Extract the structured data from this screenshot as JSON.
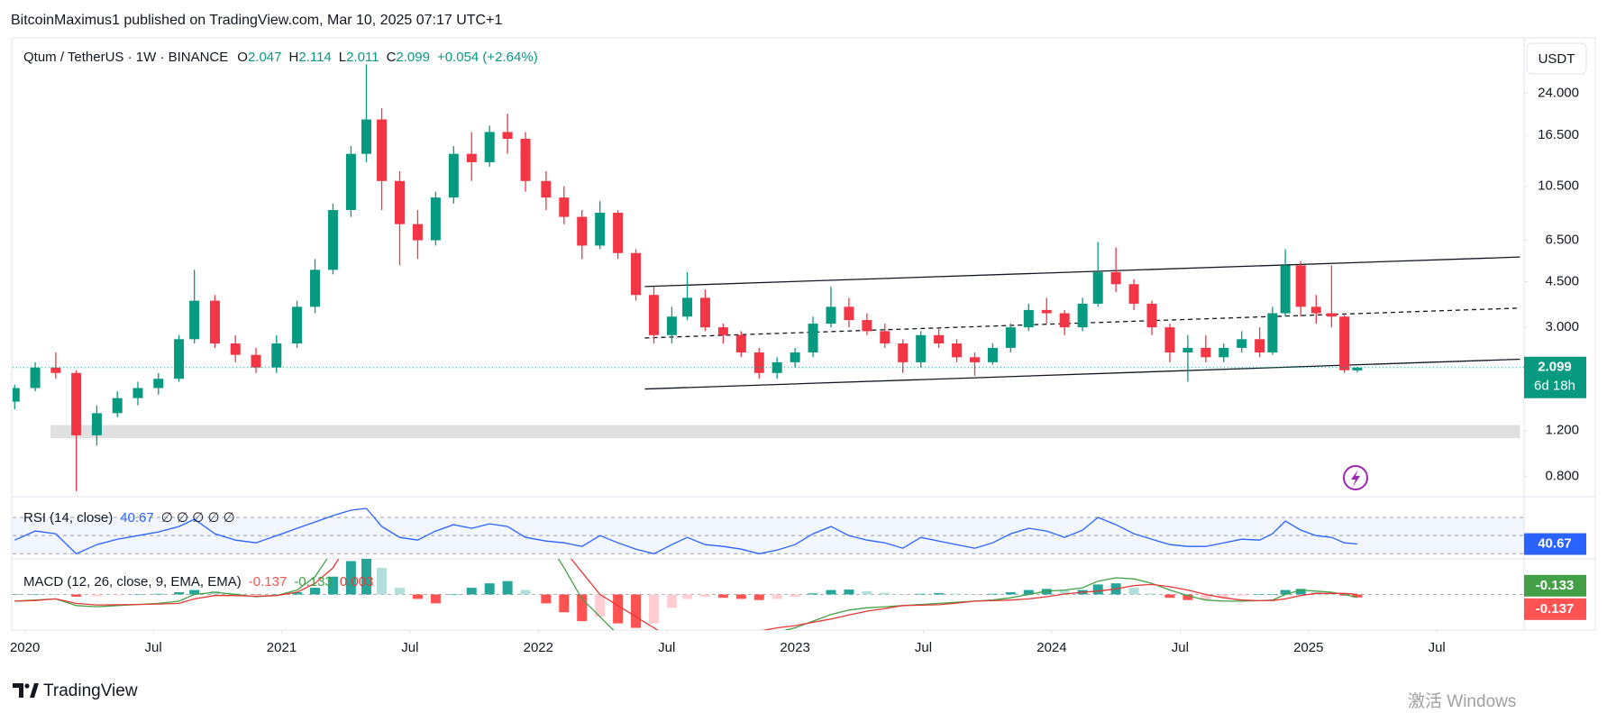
{
  "header": "BitcoinMaximus1 published on TradingView.com, Mar 10, 2025 07:17 UTC+1",
  "chart_data": {
    "type": "candlestick",
    "symbol": "Qtum / TetherUS · 1W · BINANCE",
    "legend_keys": [
      "O",
      "H",
      "L",
      "C"
    ],
    "change": "+0.054 (+2.64%)",
    "currency": "USDT",
    "countdown": "6d 18h",
    "up_color": "#089981",
    "down_color": "#f23645",
    "log_scale": true,
    "x": [
      2019.96,
      2020.04,
      2020.12,
      2020.2,
      2020.28,
      2020.36,
      2020.44,
      2020.52,
      2020.6,
      2020.66,
      2020.74,
      2020.82,
      2020.9,
      2020.98,
      2021.06,
      2021.13,
      2021.2,
      2021.27,
      2021.33,
      2021.39,
      2021.46,
      2021.53,
      2021.6,
      2021.67,
      2021.74,
      2021.81,
      2021.88,
      2021.95,
      2022.03,
      2022.1,
      2022.17,
      2022.24,
      2022.31,
      2022.38,
      2022.45,
      2022.52,
      2022.58,
      2022.65,
      2022.72,
      2022.79,
      2022.86,
      2022.93,
      2023.0,
      2023.07,
      2023.14,
      2023.21,
      2023.28,
      2023.35,
      2023.42,
      2023.49,
      2023.56,
      2023.63,
      2023.7,
      2023.77,
      2023.84,
      2023.91,
      2023.98,
      2024.05,
      2024.12,
      2024.18,
      2024.25,
      2024.32,
      2024.39,
      2024.46,
      2024.53,
      2024.6,
      2024.67,
      2024.74,
      2024.81,
      2024.86,
      2024.91,
      2024.97,
      2025.03,
      2025.09,
      2025.14,
      2025.19
    ],
    "open": [
      1.55,
      1.75,
      2.1,
      2.0,
      1.15,
      1.4,
      1.6,
      1.75,
      1.9,
      2.7,
      3.8,
      2.6,
      2.35,
      2.1,
      2.6,
      3.6,
      5.0,
      8.5,
      14,
      19,
      11,
      7.5,
      6.5,
      9.5,
      14,
      13,
      17,
      16,
      11,
      9.5,
      8,
      6.2,
      8.3,
      5.8,
      4.0,
      2.8,
      3.3,
      3.9,
      3.0,
      2.8,
      2.4,
      2.0,
      2.2,
      2.4,
      3.1,
      3.6,
      3.2,
      2.9,
      2.6,
      2.2,
      2.8,
      2.6,
      2.3,
      2.2,
      2.5,
      3.0,
      3.5,
      3.4,
      3.0,
      3.7,
      4.9,
      4.4,
      3.7,
      3.0,
      2.4,
      2.5,
      2.3,
      2.5,
      2.7,
      2.4,
      3.4,
      5.2,
      3.6,
      3.4,
      3.3,
      2.047
    ],
    "high": [
      1.8,
      2.2,
      2.4,
      2.05,
      1.5,
      1.7,
      1.85,
      2.0,
      2.8,
      5.0,
      4.0,
      2.8,
      2.5,
      2.8,
      3.8,
      5.5,
      9.0,
      15,
      31,
      21,
      12,
      8.5,
      10,
      15,
      17,
      18,
      20,
      17,
      12,
      10.5,
      8.5,
      9.2,
      8.5,
      6.0,
      4.3,
      3.6,
      4.9,
      4.2,
      3.1,
      2.9,
      2.5,
      2.3,
      2.5,
      3.3,
      4.3,
      3.9,
      3.4,
      3.1,
      2.7,
      2.9,
      3.0,
      2.7,
      2.4,
      2.6,
      3.1,
      3.7,
      3.9,
      3.5,
      3.9,
      6.4,
      6.1,
      4.6,
      3.8,
      3.1,
      2.8,
      2.8,
      2.6,
      2.9,
      3.0,
      3.6,
      6.0,
      5.4,
      4.0,
      5.2,
      3.4,
      2.114
    ],
    "low": [
      1.45,
      1.7,
      1.9,
      0.7,
      1.05,
      1.35,
      1.5,
      1.65,
      1.85,
      2.6,
      2.5,
      2.2,
      2.0,
      2.0,
      2.5,
      3.4,
      4.8,
      8.0,
      13,
      8.5,
      5.2,
      5.5,
      6.2,
      9.0,
      11,
      12.5,
      14,
      10,
      8.5,
      7.5,
      5.5,
      6.0,
      5.5,
      3.8,
      2.6,
      2.6,
      3.2,
      2.9,
      2.6,
      2.3,
      1.9,
      1.9,
      2.1,
      2.3,
      3.0,
      3.0,
      2.8,
      2.5,
      2.0,
      2.1,
      2.5,
      2.2,
      1.95,
      2.15,
      2.4,
      2.9,
      3.1,
      2.8,
      2.9,
      3.6,
      4.1,
      3.5,
      2.8,
      2.2,
      1.85,
      2.2,
      2.2,
      2.4,
      2.3,
      2.35,
      3.3,
      3.3,
      3.1,
      3.0,
      2.0,
      2.011
    ],
    "close": [
      1.75,
      2.1,
      2.0,
      1.15,
      1.4,
      1.6,
      1.75,
      1.9,
      2.7,
      3.8,
      2.6,
      2.35,
      2.1,
      2.6,
      3.6,
      5.0,
      8.5,
      14,
      19,
      11,
      7.5,
      6.5,
      9.5,
      14,
      13,
      17,
      16,
      11,
      9.5,
      8,
      6.2,
      8.3,
      5.8,
      4.0,
      2.8,
      3.3,
      3.9,
      3.0,
      2.8,
      2.4,
      2.0,
      2.2,
      2.4,
      3.1,
      3.6,
      3.2,
      2.9,
      2.6,
      2.2,
      2.8,
      2.6,
      2.3,
      2.2,
      2.5,
      3.0,
      3.5,
      3.4,
      3.0,
      3.7,
      4.9,
      4.4,
      3.7,
      3.0,
      2.4,
      2.5,
      2.3,
      2.5,
      2.7,
      2.4,
      3.4,
      5.2,
      3.6,
      3.4,
      3.3,
      2.05,
      2.099
    ],
    "xlim": [
      2019.952,
      2025.84
    ],
    "xticks": [
      {
        "value": 2020,
        "label": "2020"
      },
      {
        "value": 2020.5,
        "label": "Jul"
      },
      {
        "value": 2021,
        "label": "2021"
      },
      {
        "value": 2021.5,
        "label": "Jul"
      },
      {
        "value": 2022,
        "label": "2022"
      },
      {
        "value": 2022.5,
        "label": "Jul"
      },
      {
        "value": 2023,
        "label": "2023"
      },
      {
        "value": 2023.5,
        "label": "Jul"
      },
      {
        "value": 2024,
        "label": "2024"
      },
      {
        "value": 2024.5,
        "label": "Jul"
      },
      {
        "value": 2025,
        "label": "2025"
      },
      {
        "value": 2025.5,
        "label": "Jul"
      }
    ],
    "ylim": [
      0.667,
      38.9
    ],
    "yticks": [
      {
        "value": 24,
        "label": "24.000"
      },
      {
        "value": 16.5,
        "label": "16.500"
      },
      {
        "value": 10.5,
        "label": "10.500"
      },
      {
        "value": 6.5,
        "label": "6.500"
      },
      {
        "value": 4.5,
        "label": "4.500"
      },
      {
        "value": 3,
        "label": "3.000"
      },
      {
        "value": 1.2,
        "label": "1.200"
      },
      {
        "value": 0.8,
        "label": "0.800"
      }
    ],
    "trendlines": [
      {
        "x": [
          2022.415,
          2025.824
        ],
        "y": [
          4.31,
          5.6
        ],
        "dashed": false
      },
      {
        "x": [
          2022.415,
          2025.824
        ],
        "y": [
          2.73,
          3.56
        ],
        "dashed": true
      },
      {
        "x": [
          2022.415,
          2025.824
        ],
        "y": [
          1.735,
          2.26
        ],
        "dashed": false
      }
    ],
    "zone": {
      "x": [
        2020.1,
        2025.824
      ],
      "y": [
        1.12,
        1.26
      ],
      "color": "#e0e0e0"
    },
    "rsi": {
      "label": "RSI (14, close)",
      "extra": "∅ ∅ ∅ ∅ ∅",
      "color": "#2962ff",
      "ylim": [
        24.3,
        92.9
      ],
      "levels": [
        30,
        50,
        70
      ],
      "values": [
        45,
        55,
        52,
        30,
        40,
        46,
        50,
        54,
        60,
        68,
        52,
        45,
        42,
        50,
        58,
        65,
        72,
        78,
        80,
        60,
        48,
        45,
        55,
        62,
        58,
        63,
        60,
        48,
        44,
        42,
        38,
        50,
        42,
        35,
        30,
        40,
        48,
        40,
        38,
        35,
        30,
        34,
        40,
        52,
        60,
        50,
        45,
        42,
        36,
        48,
        44,
        40,
        36,
        42,
        52,
        58,
        55,
        48,
        56,
        70,
        62,
        52,
        46,
        40,
        38,
        38,
        42,
        46,
        45,
        52,
        66,
        56,
        50,
        48,
        42,
        40.67
      ]
    },
    "macd": {
      "label": "MACD (12, 26, close, 9, EMA, EMA)",
      "ylim": [
        -1.6,
        1.6
      ],
      "macd_color": "#43a047",
      "signal_color": "#e53935",
      "hist_colors": [
        "#26a69a",
        "#b2dfdb",
        "#ffcdd2",
        "#ff5252"
      ],
      "histogram": [
        0,
        0.02,
        0,
        -0.1,
        -0.08,
        -0.04,
        0,
        0.03,
        0.1,
        0.2,
        0.15,
        0.05,
        -0.02,
        0,
        0.1,
        0.3,
        0.8,
        1.5,
        1.8,
        1.2,
        0.3,
        -0.2,
        -0.4,
        0,
        0.3,
        0.5,
        0.6,
        0.2,
        -0.4,
        -0.8,
        -1.2,
        -1.0,
        -1.3,
        -1.5,
        -1.3,
        -0.6,
        -0.2,
        -0.1,
        -0.15,
        -0.2,
        -0.25,
        -0.2,
        -0.1,
        0.05,
        0.2,
        0.22,
        0.15,
        0.08,
        0.0,
        0.03,
        0.06,
        0.04,
        0.0,
        0.03,
        0.1,
        0.2,
        0.25,
        0.18,
        0.2,
        0.45,
        0.5,
        0.3,
        0.05,
        -0.15,
        -0.25,
        -0.25,
        -0.15,
        -0.05,
        0.0,
        0.02,
        0.2,
        0.25,
        0.1,
        0.05,
        -0.05,
        -0.137
      ],
      "macd": [
        -0.3,
        -0.25,
        -0.2,
        -0.5,
        -0.55,
        -0.5,
        -0.45,
        -0.4,
        -0.3,
        0.0,
        0.1,
        0.0,
        -0.1,
        -0.05,
        0.2,
        0.8,
        2.0,
        4.0,
        5.5,
        5.0,
        3.5,
        2.5,
        2.0,
        2.2,
        3.0,
        3.8,
        4.3,
        3.8,
        2.5,
        1.2,
        -0.2,
        -1.0,
        -1.8,
        -2.5,
        -2.8,
        -2.6,
        -2.4,
        -2.2,
        -2.1,
        -2.0,
        -1.9,
        -1.7,
        -1.5,
        -1.2,
        -0.9,
        -0.7,
        -0.6,
        -0.55,
        -0.5,
        -0.45,
        -0.4,
        -0.35,
        -0.3,
        -0.25,
        -0.15,
        0.0,
        0.15,
        0.2,
        0.3,
        0.6,
        0.75,
        0.7,
        0.5,
        0.2,
        -0.05,
        -0.25,
        -0.3,
        -0.3,
        -0.28,
        -0.25,
        0.0,
        0.2,
        0.15,
        0.1,
        0.0,
        -0.133
      ],
      "signal": [
        -0.3,
        -0.27,
        -0.2,
        -0.4,
        -0.47,
        -0.46,
        -0.45,
        -0.43,
        -0.4,
        -0.2,
        -0.05,
        -0.05,
        -0.08,
        -0.05,
        0.1,
        0.5,
        1.2,
        2.5,
        3.7,
        3.8,
        3.2,
        2.7,
        2.4,
        2.2,
        2.7,
        3.3,
        3.7,
        3.6,
        2.9,
        2.0,
        1.0,
        0.0,
        -0.5,
        -1.0,
        -1.5,
        -2.0,
        -2.2,
        -2.1,
        -1.95,
        -1.8,
        -1.65,
        -1.5,
        -1.4,
        -1.25,
        -1.1,
        -0.92,
        -0.75,
        -0.63,
        -0.5,
        -0.48,
        -0.46,
        -0.39,
        -0.3,
        -0.28,
        -0.25,
        -0.2,
        -0.1,
        0.02,
        0.1,
        0.15,
        0.25,
        0.4,
        0.45,
        0.35,
        0.2,
        0.0,
        -0.15,
        -0.25,
        -0.28,
        -0.27,
        -0.2,
        -0.05,
        0.05,
        0.05,
        0.05,
        0.003
      ]
    }
  },
  "footer": {
    "logo": "TradingView",
    "watermark": "激活 Windows"
  }
}
